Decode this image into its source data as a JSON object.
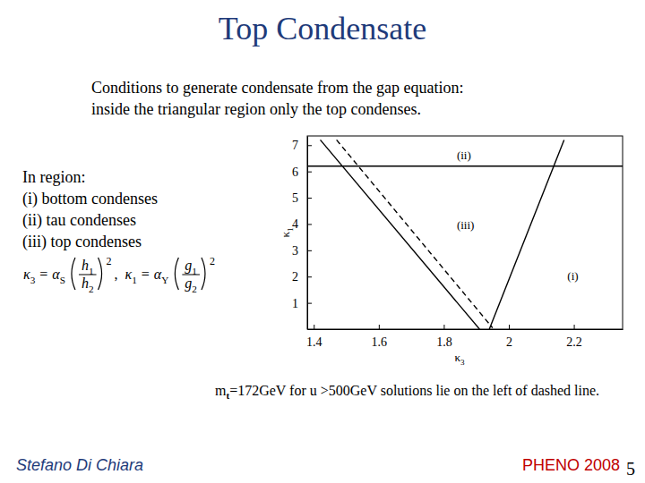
{
  "slide": {
    "title": "Top Condensate",
    "intro": [
      "Conditions to generate condensate from the gap equation:",
      "inside the triangular region only the top condenses."
    ],
    "regions": [
      "In region:",
      "(i) bottom condenses",
      "(ii) tau condenses",
      "(iii) top condenses"
    ],
    "formula": [
      {
        "lhs": "κ3",
        "rel": "=",
        "coef": "αS",
        "num": "h1",
        "den": "h2",
        "exp": "2",
        "sep": ","
      },
      {
        "lhs": "κ1",
        "rel": "=",
        "coef": "αY",
        "num": "g1",
        "den": "g2",
        "exp": "2"
      }
    ],
    "note": "mt=172GeV for u >500GeV solutions lie on the left of dashed line.",
    "author": "Stefano Di Chiara",
    "event": "PHENO 2008",
    "page": "5"
  },
  "chart_data": {
    "type": "line",
    "x_label": "κ3",
    "y_label": "κ1",
    "xlim": [
      1.38,
      2.35
    ],
    "ylim": [
      0,
      7.35
    ],
    "xticks": [
      1.4,
      1.6,
      1.8,
      2,
      2.2
    ],
    "yticks": [
      1,
      2,
      3,
      4,
      5,
      6,
      7
    ],
    "grid": false,
    "series": [
      {
        "color": "#000000",
        "line_style": "solid",
        "x": [
          1.42,
          1.91
        ],
        "values": [
          7.2,
          0
        ]
      },
      {
        "color": "#000000",
        "line_style": "dashed",
        "x": [
          1.47,
          1.95
        ],
        "values": [
          7.2,
          0.05
        ]
      },
      {
        "color": "#000000",
        "line_style": "solid",
        "x": [
          1.38,
          2.35
        ],
        "values": [
          6.2,
          6.2
        ]
      },
      {
        "color": "#000000",
        "line_style": "solid",
        "x": [
          1.94,
          2.17
        ],
        "values": [
          0,
          7.2
        ]
      }
    ],
    "annotations": [
      {
        "text": "(ii)",
        "x": 1.84,
        "y": 6.45
      },
      {
        "text": "(iii)",
        "x": 1.84,
        "y": 3.82
      },
      {
        "text": "(i)",
        "x": 2.18,
        "y": 1.88
      }
    ]
  }
}
